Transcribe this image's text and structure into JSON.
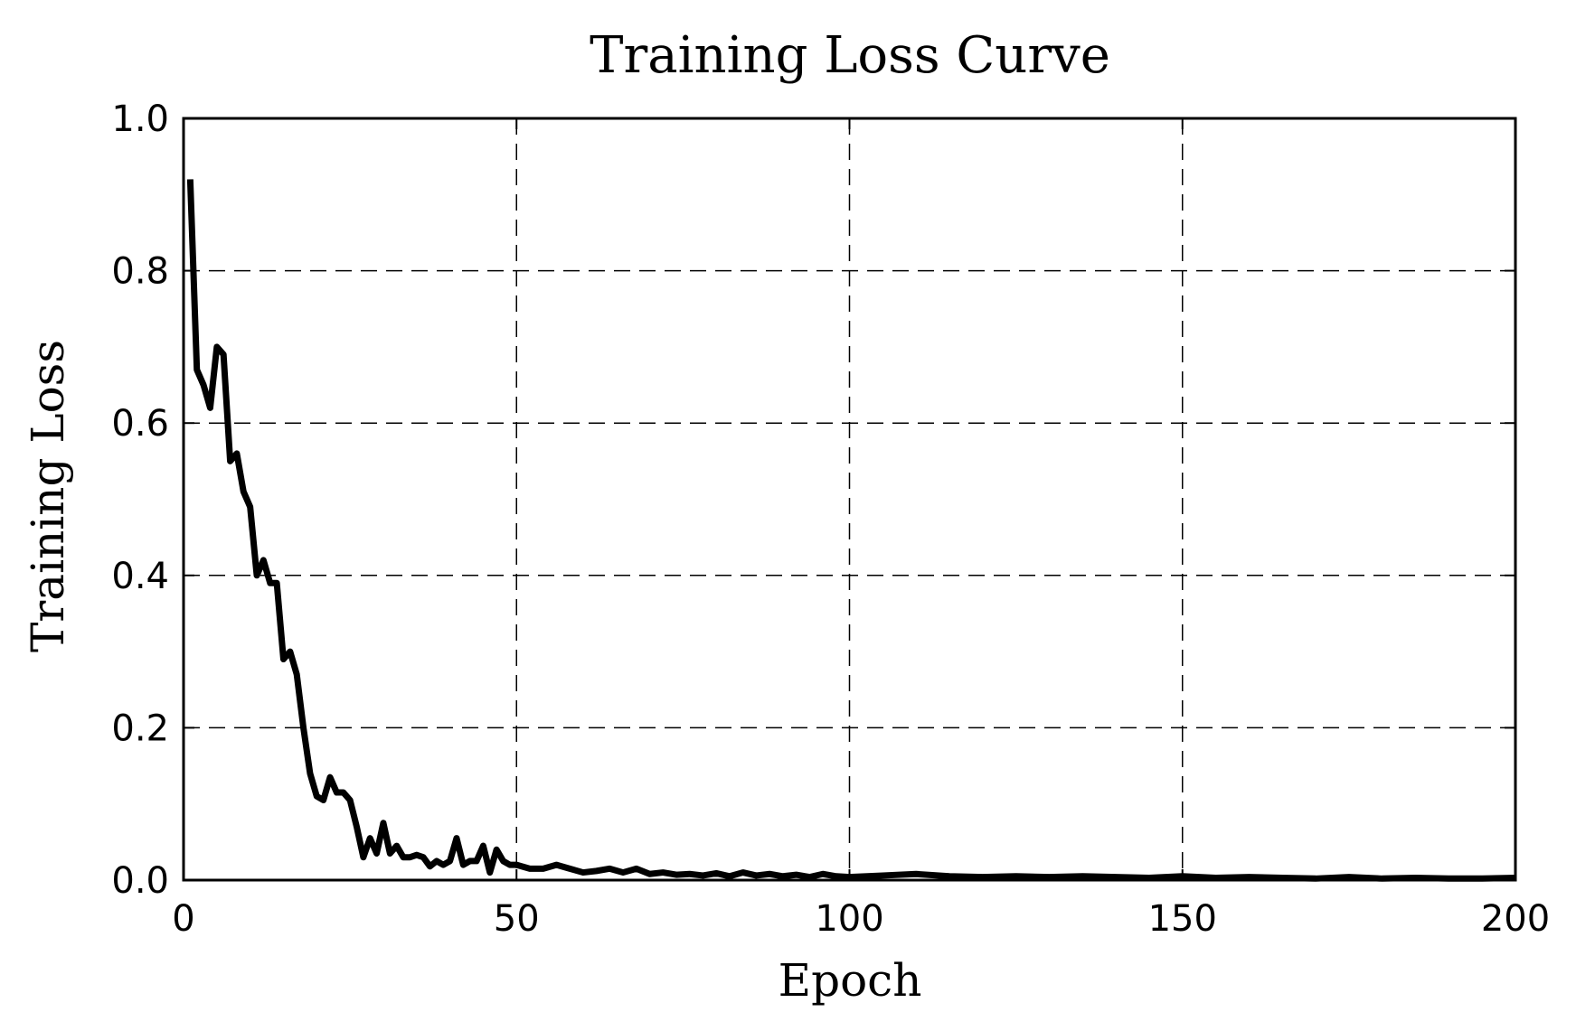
{
  "chart_data": {
    "type": "line",
    "title": "Training Loss Curve",
    "xlabel": "Epoch",
    "ylabel": "Training Loss",
    "xlim": [
      0,
      200
    ],
    "ylim": [
      0,
      1.0
    ],
    "xticks": [
      0,
      50,
      100,
      150,
      200
    ],
    "xtick_labels": [
      "0",
      "50",
      "100",
      "150",
      "200"
    ],
    "yticks": [
      0.0,
      0.2,
      0.4,
      0.6,
      0.8,
      1.0
    ],
    "ytick_labels": [
      "0.0",
      "0.2",
      "0.4",
      "0.6",
      "0.8",
      "1.0"
    ],
    "grid": true,
    "grid_style": "dashed",
    "line_color": "#000000",
    "series": [
      {
        "x": [
          1,
          2,
          3,
          4,
          5,
          6,
          7,
          8,
          9,
          10,
          11,
          12,
          13,
          14,
          15,
          16,
          17,
          18,
          19,
          20,
          21,
          22,
          23,
          24,
          25,
          26,
          27,
          28,
          29,
          30,
          31,
          32,
          33,
          34,
          35,
          36,
          37,
          38,
          39,
          40,
          41,
          42,
          43,
          44,
          45,
          46,
          47,
          48,
          49,
          50,
          52,
          54,
          56,
          58,
          60,
          62,
          64,
          66,
          68,
          70,
          72,
          74,
          76,
          78,
          80,
          82,
          84,
          86,
          88,
          90,
          92,
          94,
          96,
          98,
          100,
          105,
          110,
          115,
          120,
          125,
          130,
          135,
          140,
          145,
          150,
          155,
          160,
          165,
          170,
          175,
          180,
          185,
          190,
          195,
          200
        ],
        "y": [
          0.92,
          0.67,
          0.65,
          0.62,
          0.7,
          0.69,
          0.55,
          0.56,
          0.51,
          0.49,
          0.4,
          0.42,
          0.39,
          0.39,
          0.29,
          0.3,
          0.27,
          0.2,
          0.14,
          0.11,
          0.105,
          0.135,
          0.115,
          0.115,
          0.105,
          0.07,
          0.03,
          0.055,
          0.035,
          0.075,
          0.035,
          0.045,
          0.03,
          0.03,
          0.033,
          0.03,
          0.018,
          0.025,
          0.02,
          0.025,
          0.055,
          0.02,
          0.025,
          0.025,
          0.045,
          0.01,
          0.04,
          0.025,
          0.02,
          0.02,
          0.015,
          0.015,
          0.02,
          0.015,
          0.01,
          0.012,
          0.015,
          0.01,
          0.015,
          0.008,
          0.01,
          0.007,
          0.008,
          0.006,
          0.009,
          0.005,
          0.01,
          0.006,
          0.008,
          0.005,
          0.007,
          0.004,
          0.008,
          0.005,
          0.004,
          0.006,
          0.008,
          0.005,
          0.004,
          0.005,
          0.004,
          0.005,
          0.004,
          0.003,
          0.005,
          0.003,
          0.004,
          0.003,
          0.002,
          0.004,
          0.002,
          0.003,
          0.002,
          0.002,
          0.003
        ]
      }
    ]
  }
}
